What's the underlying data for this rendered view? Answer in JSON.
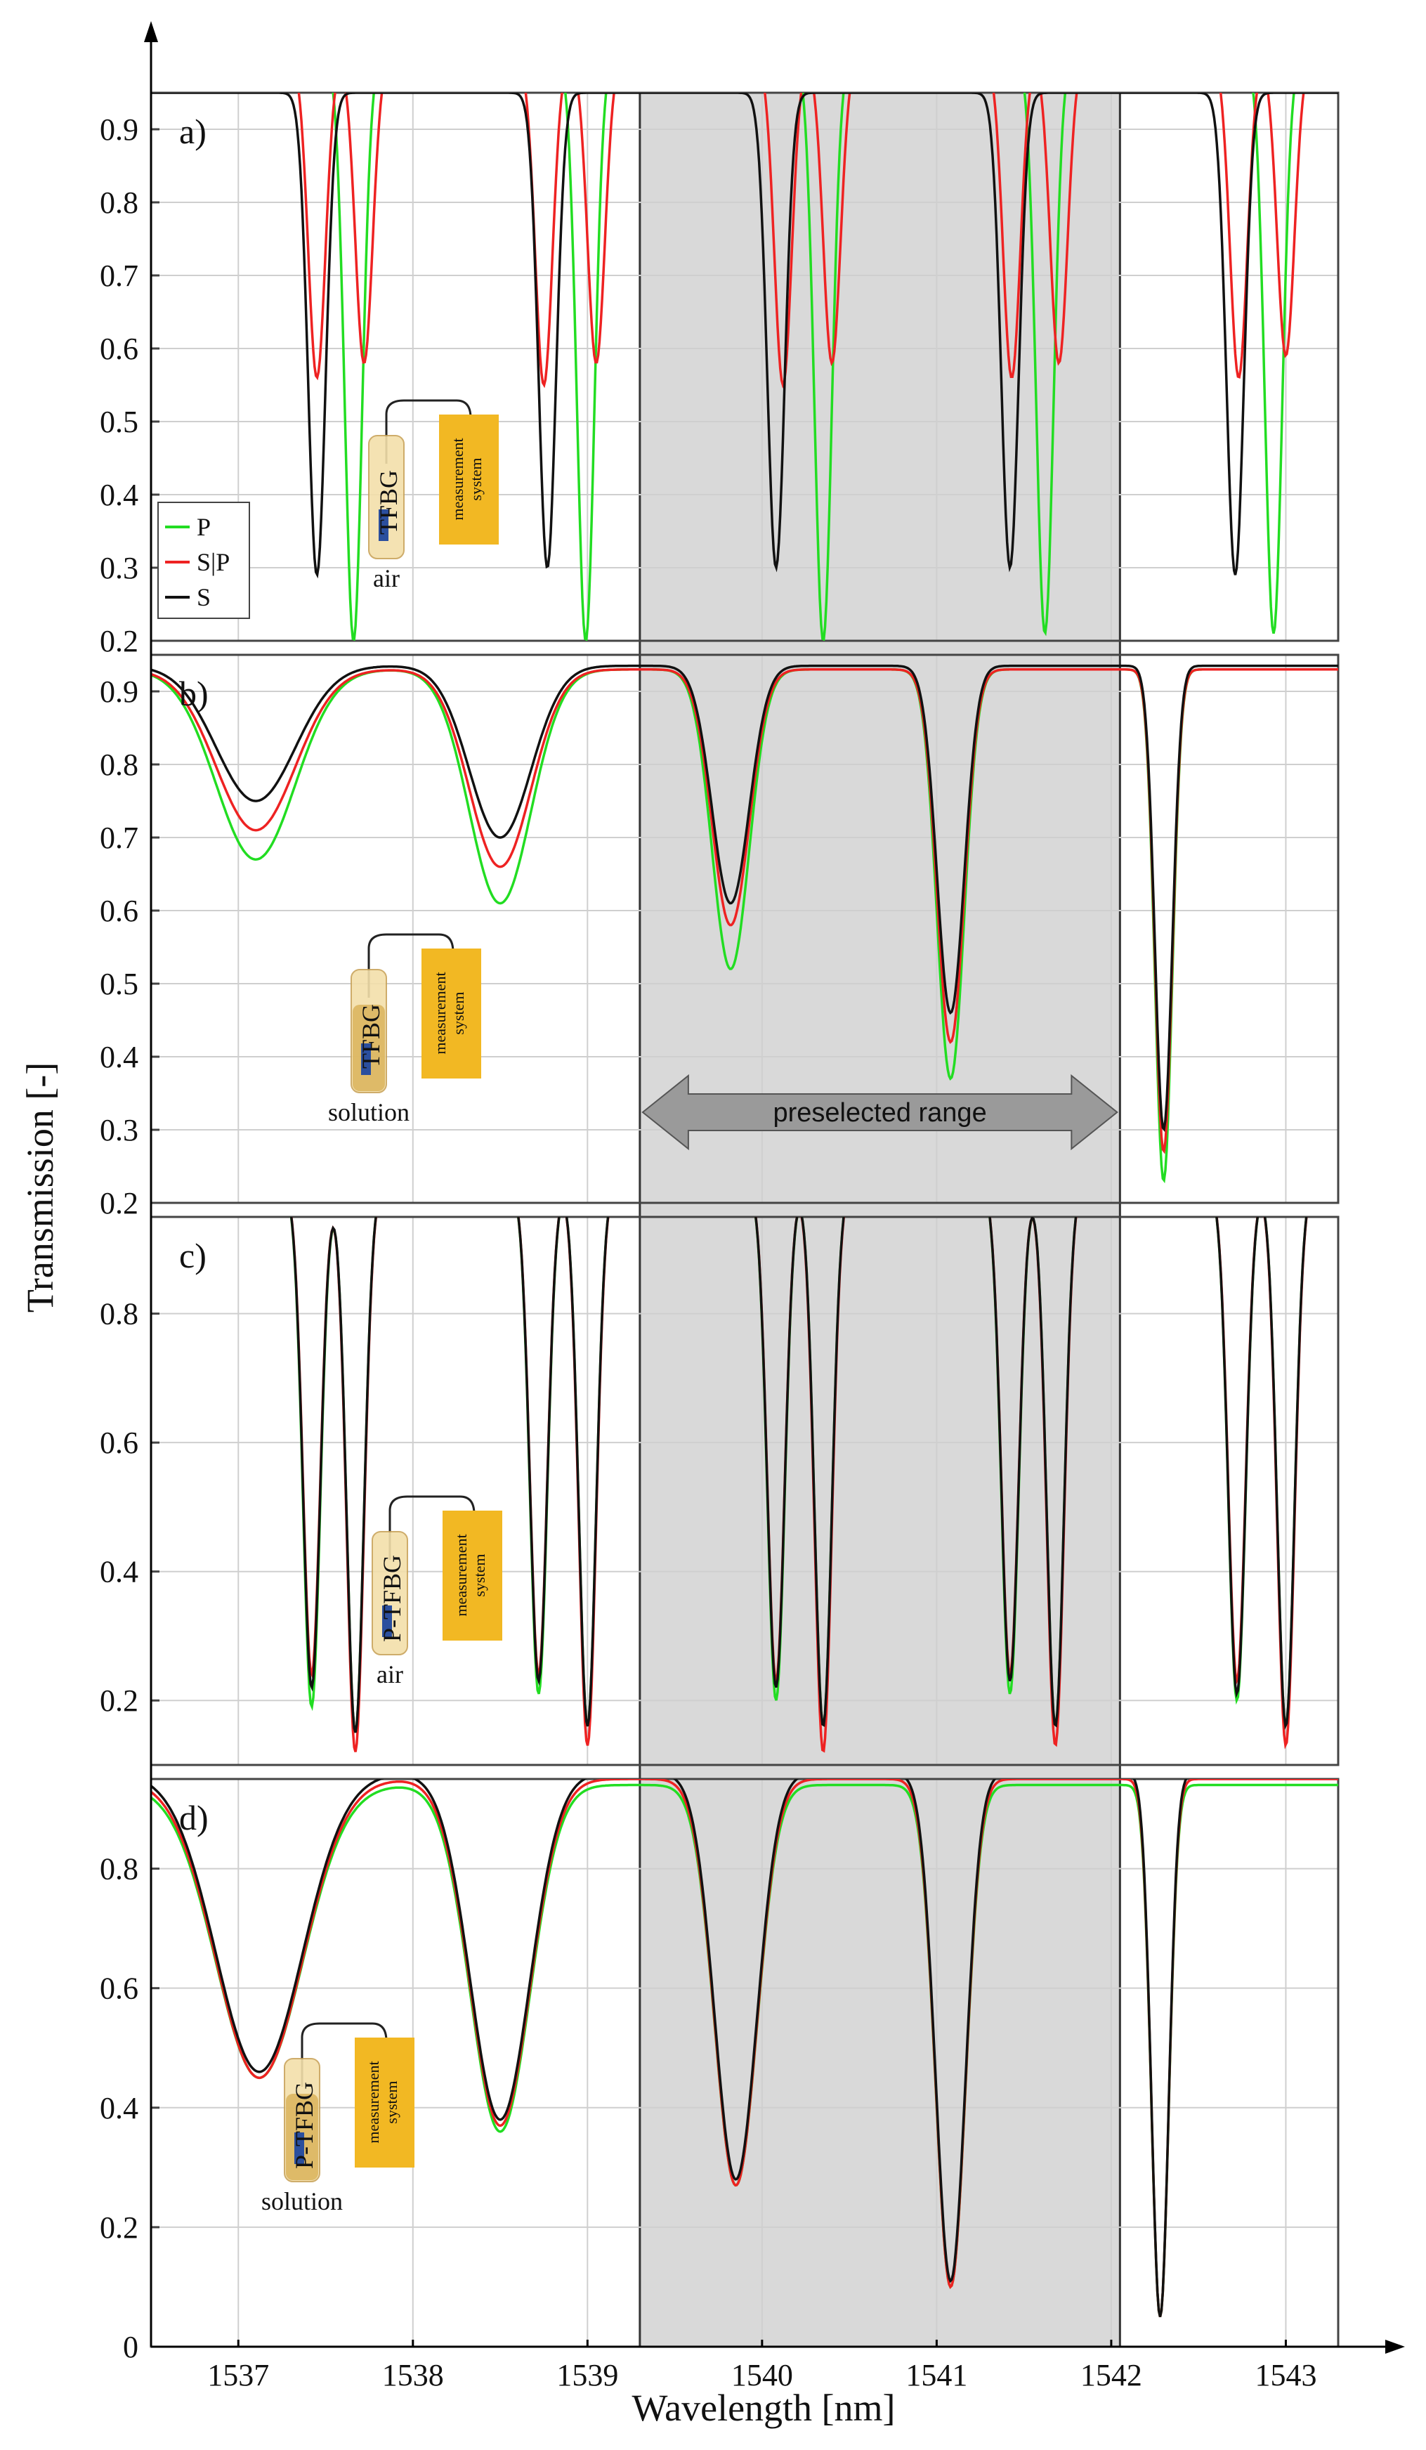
{
  "chart_data": {
    "type": "line",
    "xlabel": "Wavelength [nm]",
    "ylabel": "Transmission [-]",
    "xlim": [
      1536.5,
      1543.3
    ],
    "x_ticks": [
      "1537",
      "1538",
      "1539",
      "1540",
      "1541",
      "1542",
      "1543"
    ],
    "legend": {
      "placement": "lower-left of panel a",
      "entries": [
        {
          "name": "P",
          "color": "#22dd22"
        },
        {
          "name": "S|P",
          "color": "#ee2222"
        },
        {
          "name": "S",
          "color": "#111111"
        }
      ]
    },
    "preselected_range": {
      "label": "preselected range",
      "x_from": 1539.3,
      "x_to": 1542.05,
      "fill": "#d9d9d9"
    },
    "panels": [
      {
        "id": "a",
        "label": "a)",
        "ylim": [
          0.2,
          0.95
        ],
        "y_ticks": [
          0.2,
          0.3,
          0.4,
          0.5,
          0.6,
          0.7,
          0.8,
          0.9
        ],
        "y_tick_labels": [
          "0.2",
          "0.3",
          "0.4",
          "0.5",
          "0.6",
          "0.7",
          "0.8",
          "0.9"
        ],
        "inset": {
          "sensor": "TFBG",
          "medium": "air",
          "box": "measurement system"
        },
        "series": [
          {
            "name": "P",
            "color": "#22dd22",
            "baseline": 1.0,
            "dips": [
              [
                1537.66,
                0.2,
                0.07
              ],
              [
                1538.99,
                0.2,
                0.07
              ],
              [
                1540.35,
                0.2,
                0.07
              ],
              [
                1541.62,
                0.21,
                0.07
              ],
              [
                1542.93,
                0.21,
                0.07
              ]
            ]
          },
          {
            "name": "S|P",
            "color": "#ee2222",
            "baseline": 1.0,
            "dips": [
              [
                1537.45,
                0.56,
                0.07
              ],
              [
                1537.72,
                0.58,
                0.07
              ],
              [
                1538.75,
                0.55,
                0.07
              ],
              [
                1539.05,
                0.58,
                0.07
              ],
              [
                1540.12,
                0.55,
                0.07
              ],
              [
                1540.4,
                0.58,
                0.07
              ],
              [
                1541.43,
                0.56,
                0.07
              ],
              [
                1541.7,
                0.58,
                0.07
              ],
              [
                1542.73,
                0.56,
                0.07
              ],
              [
                1543.0,
                0.59,
                0.07
              ]
            ]
          },
          {
            "name": "S",
            "color": "#111111",
            "baseline": 0.95,
            "dips": [
              [
                1537.45,
                0.29,
                0.07
              ],
              [
                1538.77,
                0.3,
                0.07
              ],
              [
                1540.08,
                0.3,
                0.07
              ],
              [
                1541.42,
                0.3,
                0.07
              ],
              [
                1542.71,
                0.29,
                0.07
              ]
            ]
          }
        ]
      },
      {
        "id": "b",
        "label": "b)",
        "ylim": [
          0.2,
          0.95
        ],
        "y_ticks": [
          0.2,
          0.3,
          0.4,
          0.5,
          0.6,
          0.7,
          0.8,
          0.9
        ],
        "y_tick_labels": [
          "0.2",
          "0.3",
          "0.4",
          "0.5",
          "0.6",
          "0.7",
          "0.8",
          "0.9"
        ],
        "inset": {
          "sensor": "TFBG",
          "medium": "solution",
          "box": "measurement system"
        },
        "series": [
          {
            "name": "P",
            "color": "#22dd22",
            "baseline": 0.93,
            "dips": [
              [
                1537.1,
                0.67,
                0.32
              ],
              [
                1538.5,
                0.61,
                0.25
              ],
              [
                1539.82,
                0.52,
                0.15
              ],
              [
                1541.08,
                0.37,
                0.11
              ],
              [
                1542.3,
                0.23,
                0.07
              ]
            ]
          },
          {
            "name": "S|P",
            "color": "#ee2222",
            "baseline": 0.93,
            "dips": [
              [
                1537.1,
                0.71,
                0.32
              ],
              [
                1538.5,
                0.66,
                0.25
              ],
              [
                1539.82,
                0.58,
                0.15
              ],
              [
                1541.08,
                0.42,
                0.11
              ],
              [
                1542.3,
                0.27,
                0.07
              ]
            ]
          },
          {
            "name": "S",
            "color": "#111111",
            "baseline": 0.935,
            "dips": [
              [
                1537.1,
                0.75,
                0.32
              ],
              [
                1538.5,
                0.7,
                0.25
              ],
              [
                1539.82,
                0.61,
                0.15
              ],
              [
                1541.08,
                0.46,
                0.11
              ],
              [
                1542.3,
                0.3,
                0.07
              ]
            ]
          }
        ]
      },
      {
        "id": "c",
        "label": "c)",
        "ylim": [
          0.1,
          0.95
        ],
        "y_ticks": [
          0.2,
          0.4,
          0.6,
          0.8
        ],
        "y_tick_labels": [
          "0.2",
          "0.4",
          "0.6",
          "0.8"
        ],
        "inset": {
          "sensor": "P-TFBG",
          "medium": "air",
          "box": "measurement system"
        },
        "series": [
          {
            "name": "P",
            "color": "#22dd22",
            "baseline": 1.0,
            "dips": [
              [
                1537.42,
                0.19,
                0.07
              ],
              [
                1537.67,
                0.15,
                0.07
              ],
              [
                1538.72,
                0.21,
                0.07
              ],
              [
                1539.0,
                0.16,
                0.07
              ],
              [
                1540.08,
                0.2,
                0.07
              ],
              [
                1540.35,
                0.16,
                0.07
              ],
              [
                1541.42,
                0.21,
                0.07
              ],
              [
                1541.68,
                0.16,
                0.07
              ],
              [
                1542.72,
                0.2,
                0.07
              ],
              [
                1543.0,
                0.16,
                0.07
              ]
            ]
          },
          {
            "name": "S|P",
            "color": "#ee2222",
            "baseline": 1.0,
            "dips": [
              [
                1537.42,
                0.24,
                0.07
              ],
              [
                1537.67,
                0.12,
                0.07
              ],
              [
                1538.72,
                0.24,
                0.07
              ],
              [
                1539.0,
                0.13,
                0.07
              ],
              [
                1540.08,
                0.23,
                0.07
              ],
              [
                1540.35,
                0.12,
                0.07
              ],
              [
                1541.42,
                0.24,
                0.07
              ],
              [
                1541.68,
                0.13,
                0.07
              ],
              [
                1542.72,
                0.23,
                0.07
              ],
              [
                1543.0,
                0.13,
                0.07
              ]
            ]
          },
          {
            "name": "S",
            "color": "#111111",
            "baseline": 1.0,
            "dips": [
              [
                1537.42,
                0.22,
                0.07
              ],
              [
                1537.67,
                0.15,
                0.07
              ],
              [
                1538.72,
                0.23,
                0.07
              ],
              [
                1539.0,
                0.16,
                0.07
              ],
              [
                1540.08,
                0.22,
                0.07
              ],
              [
                1540.35,
                0.16,
                0.07
              ],
              [
                1541.42,
                0.23,
                0.07
              ],
              [
                1541.68,
                0.16,
                0.07
              ],
              [
                1542.72,
                0.21,
                0.07
              ],
              [
                1543.0,
                0.16,
                0.07
              ]
            ]
          }
        ]
      },
      {
        "id": "d",
        "label": "d)",
        "ylim": [
          0.0,
          0.95
        ],
        "y_ticks": [
          0.0,
          0.2,
          0.4,
          0.6,
          0.8
        ],
        "y_tick_labels": [
          "0",
          "0.2",
          "0.4",
          "0.6",
          "0.8"
        ],
        "inset": {
          "sensor": "P-TFBG",
          "medium": "solution",
          "box": "measurement system"
        },
        "series": [
          {
            "name": "P",
            "color": "#22dd22",
            "baseline": 0.94,
            "dips": [
              [
                1537.12,
                0.45,
                0.35
              ],
              [
                1538.5,
                0.36,
                0.24
              ],
              [
                1539.85,
                0.27,
                0.17
              ],
              [
                1541.08,
                0.1,
                0.12
              ],
              [
                1542.28,
                0.05,
                0.07
              ]
            ]
          },
          {
            "name": "S|P",
            "color": "#ee2222",
            "baseline": 0.95,
            "dips": [
              [
                1537.12,
                0.45,
                0.35
              ],
              [
                1538.5,
                0.37,
                0.24
              ],
              [
                1539.85,
                0.27,
                0.17
              ],
              [
                1541.08,
                0.1,
                0.12
              ],
              [
                1542.28,
                0.05,
                0.07
              ]
            ]
          },
          {
            "name": "S",
            "color": "#111111",
            "baseline": 0.96,
            "dips": [
              [
                1537.12,
                0.46,
                0.35
              ],
              [
                1538.5,
                0.38,
                0.24
              ],
              [
                1539.85,
                0.28,
                0.17
              ],
              [
                1541.08,
                0.11,
                0.12
              ],
              [
                1542.28,
                0.05,
                0.07
              ]
            ]
          }
        ]
      }
    ]
  }
}
